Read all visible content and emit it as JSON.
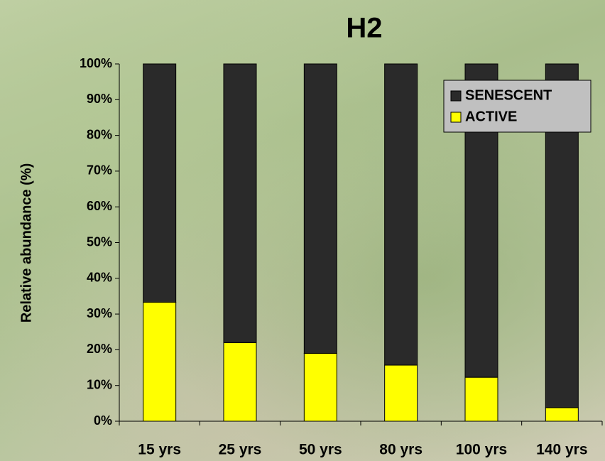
{
  "chart_data": {
    "type": "stacked_bar",
    "title": "H2",
    "y_label": "Relative abundance (%)",
    "categories": [
      "15 yrs",
      "25 yrs",
      "50 yrs",
      "80 yrs",
      "100 yrs",
      "140 yrs"
    ],
    "series": [
      {
        "name": "ACTIVE",
        "color": "#ffff00",
        "values": [
          33.3,
          22,
          19,
          15.7,
          12.3,
          3.8
        ]
      },
      {
        "name": "SENESCENT",
        "color": "#2a2a2a",
        "values": [
          66.7,
          78,
          81,
          84.3,
          87.7,
          96.2
        ]
      }
    ],
    "ylim": [
      0,
      100
    ],
    "yticks": [
      {
        "value": 0,
        "label": "0%"
      },
      {
        "value": 10,
        "label": "10%"
      },
      {
        "value": 20,
        "label": "20%"
      },
      {
        "value": 30,
        "label": "30%"
      },
      {
        "value": 40,
        "label": "40%"
      },
      {
        "value": 50,
        "label": "50%"
      },
      {
        "value": 60,
        "label": "60%"
      },
      {
        "value": 70,
        "label": "70%"
      },
      {
        "value": 80,
        "label": "80%"
      },
      {
        "value": 90,
        "label": "90%"
      },
      {
        "value": 100,
        "label": "100%"
      }
    ],
    "grid": false,
    "legend": "top-right"
  }
}
